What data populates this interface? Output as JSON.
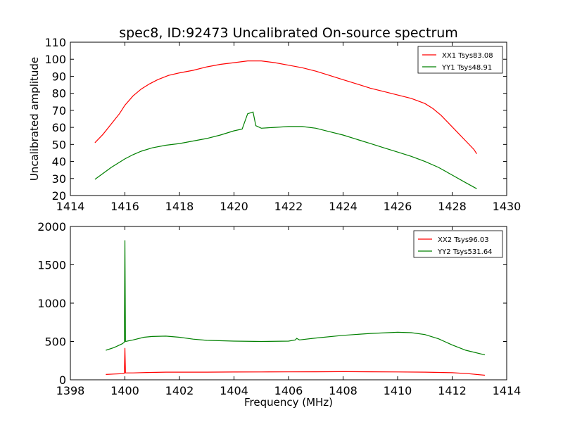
{
  "figure": {
    "title": "spec8, ID:92473 Uncalibrated On-source spectrum",
    "xlabel": "Frequency (MHz)"
  },
  "chart_data": [
    {
      "type": "line",
      "ylabel": "Uncalibrated amplitude",
      "xlim": [
        1414,
        1430
      ],
      "ylim": [
        20,
        110
      ],
      "xticks": [
        1414,
        1416,
        1418,
        1420,
        1422,
        1424,
        1426,
        1428,
        1430
      ],
      "yticks": [
        20,
        30,
        40,
        50,
        60,
        70,
        80,
        90,
        100,
        110
      ],
      "grid": false,
      "legend_position": "top-right",
      "series": [
        {
          "name": "XX1 Tsys83.08",
          "color": "#ff0000",
          "x": [
            1414.9,
            1415.2,
            1415.5,
            1415.8,
            1416.0,
            1416.3,
            1416.6,
            1416.9,
            1417.2,
            1417.6,
            1418.0,
            1418.5,
            1419.0,
            1419.5,
            1420.0,
            1420.5,
            1421.0,
            1421.5,
            1422.0,
            1422.5,
            1423.0,
            1423.5,
            1424.0,
            1424.5,
            1425.0,
            1425.5,
            1426.0,
            1426.5,
            1427.0,
            1427.3,
            1427.6,
            1427.9,
            1428.2,
            1428.5,
            1428.8,
            1428.9
          ],
          "y": [
            51,
            56,
            62,
            68,
            73,
            78.5,
            82.5,
            85.5,
            88,
            90.5,
            92,
            93.5,
            95.5,
            97,
            98,
            99,
            99,
            98,
            96.5,
            95,
            93,
            90.5,
            88,
            85.5,
            83,
            81,
            79,
            77,
            74,
            71,
            67,
            62,
            57,
            52,
            47,
            44.5
          ]
        },
        {
          "name": "YY1 Tsys48.91",
          "color": "#008000",
          "x": [
            1414.9,
            1415.2,
            1415.5,
            1415.8,
            1416.0,
            1416.3,
            1416.6,
            1417.0,
            1417.5,
            1418.0,
            1418.5,
            1419.0,
            1419.5,
            1420.0,
            1420.3,
            1420.5,
            1420.7,
            1420.8,
            1421.0,
            1421.5,
            1422.0,
            1422.5,
            1423.0,
            1423.5,
            1424.0,
            1424.5,
            1425.0,
            1425.5,
            1426.0,
            1426.5,
            1427.0,
            1427.5,
            1428.0,
            1428.5,
            1428.9
          ],
          "y": [
            29.5,
            33,
            36.5,
            39.5,
            41.5,
            44,
            46,
            48,
            49.5,
            50.5,
            52,
            53.5,
            55.5,
            58,
            59,
            68,
            69,
            61,
            59.5,
            60,
            60.5,
            60.5,
            59.5,
            57.5,
            55.5,
            53,
            50.5,
            48,
            45.5,
            43,
            40,
            36.5,
            32,
            27.5,
            24
          ]
        }
      ]
    },
    {
      "type": "line",
      "ylabel": "",
      "xlim": [
        1398,
        1414
      ],
      "ylim": [
        0,
        2000
      ],
      "xticks": [
        1398,
        1400,
        1402,
        1404,
        1406,
        1408,
        1410,
        1412,
        1414
      ],
      "yticks": [
        0,
        500,
        1000,
        1500,
        2000
      ],
      "grid": false,
      "legend_position": "top-right",
      "series": [
        {
          "name": "XX2 Tsys96.03",
          "color": "#ff0000",
          "x": [
            1399.3,
            1399.6,
            1399.9,
            1399.98,
            1400.0,
            1400.02,
            1400.3,
            1400.8,
            1401.5,
            1402.0,
            1403.0,
            1404.0,
            1405.0,
            1406.0,
            1407.0,
            1408.0,
            1409.0,
            1410.0,
            1411.0,
            1412.0,
            1412.6,
            1413.2
          ],
          "y": [
            70,
            75,
            80,
            85,
            415,
            90,
            90,
            95,
            100,
            100,
            100,
            102,
            103,
            104,
            105,
            106,
            105,
            103,
            100,
            93,
            80,
            60
          ]
        },
        {
          "name": "YY2 Tsys531.64",
          "color": "#008000",
          "x": [
            1399.3,
            1399.6,
            1399.9,
            1399.98,
            1400.0,
            1400.02,
            1400.3,
            1400.7,
            1401.0,
            1401.5,
            1402.0,
            1402.5,
            1403.0,
            1404.0,
            1405.0,
            1406.0,
            1406.25,
            1406.3,
            1406.4,
            1407.0,
            1408.0,
            1409.0,
            1410.0,
            1410.5,
            1411.0,
            1411.5,
            1412.0,
            1412.5,
            1413.2
          ],
          "y": [
            385,
            420,
            470,
            490,
            1820,
            500,
            520,
            555,
            565,
            570,
            555,
            530,
            515,
            505,
            500,
            505,
            520,
            540,
            520,
            545,
            580,
            605,
            620,
            615,
            590,
            535,
            455,
            385,
            325
          ]
        }
      ]
    }
  ]
}
